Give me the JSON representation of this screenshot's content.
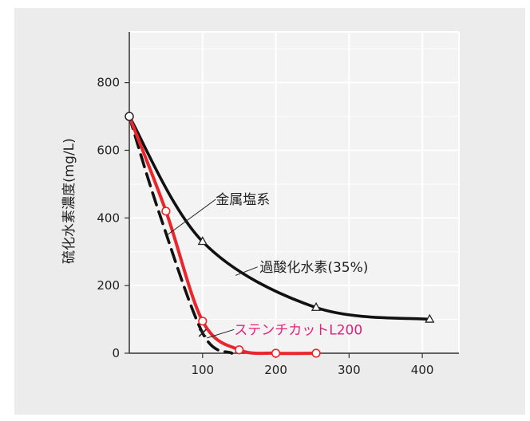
{
  "chart_data": {
    "type": "line",
    "xlabel": "",
    "ylabel": "硫化水素濃度(mg/L)",
    "xlim": [
      0,
      450
    ],
    "ylim": [
      0,
      950
    ],
    "x_ticks": [
      100,
      200,
      300,
      400
    ],
    "x_tick_labels": [
      "100",
      "200",
      "300",
      "400"
    ],
    "y_ticks": [
      0,
      200,
      400,
      600,
      800
    ],
    "y_tick_labels": [
      "0",
      "200",
      "400",
      "600",
      "800"
    ],
    "grid": true,
    "series": [
      {
        "name": "過酸化水素(35%)",
        "color": "#111111",
        "marker": "triangle",
        "dash": "solid",
        "x": [
          0,
          100,
          255,
          410
        ],
        "y": [
          700,
          330,
          135,
          100
        ]
      },
      {
        "name": "金属塩系",
        "color": "#111111",
        "marker": "x",
        "dash": "dashed",
        "x": [
          0,
          100
        ],
        "y": [
          700,
          60
        ]
      },
      {
        "name": "ステンチカットL200",
        "color": "#e8262b",
        "label_color": "#e4207c",
        "marker": "circle",
        "dash": "solid",
        "x": [
          0,
          50,
          100,
          150,
          200,
          255
        ],
        "y": [
          700,
          420,
          95,
          10,
          0,
          0
        ]
      }
    ]
  }
}
